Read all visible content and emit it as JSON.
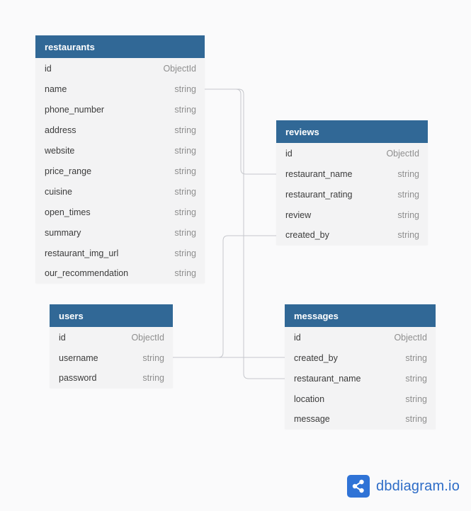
{
  "tables": [
    {
      "id": "restaurants",
      "title": "restaurants",
      "columns": [
        {
          "name": "id",
          "type": "ObjectId"
        },
        {
          "name": "name",
          "type": "string"
        },
        {
          "name": "phone_number",
          "type": "string"
        },
        {
          "name": "address",
          "type": "string"
        },
        {
          "name": "website",
          "type": "string"
        },
        {
          "name": "price_range",
          "type": "string"
        },
        {
          "name": "cuisine",
          "type": "string"
        },
        {
          "name": "open_times",
          "type": "string"
        },
        {
          "name": "summary",
          "type": "string"
        },
        {
          "name": "restaurant_img_url",
          "type": "string"
        },
        {
          "name": "our_recommendation",
          "type": "string"
        }
      ]
    },
    {
      "id": "reviews",
      "title": "reviews",
      "columns": [
        {
          "name": "id",
          "type": "ObjectId"
        },
        {
          "name": "restaurant_name",
          "type": "string"
        },
        {
          "name": "restaurant_rating",
          "type": "string"
        },
        {
          "name": "review",
          "type": "string"
        },
        {
          "name": "created_by",
          "type": "string"
        }
      ]
    },
    {
      "id": "users",
      "title": "users",
      "columns": [
        {
          "name": "id",
          "type": "ObjectId"
        },
        {
          "name": "username",
          "type": "string"
        },
        {
          "name": "password",
          "type": "string"
        }
      ]
    },
    {
      "id": "messages",
      "title": "messages",
      "columns": [
        {
          "name": "id",
          "type": "ObjectId"
        },
        {
          "name": "created_by",
          "type": "string"
        },
        {
          "name": "restaurant_name",
          "type": "string"
        },
        {
          "name": "location",
          "type": "string"
        },
        {
          "name": "message",
          "type": "string"
        }
      ]
    }
  ],
  "relations": [
    {
      "from": "restaurants.name",
      "to": "reviews.restaurant_name"
    },
    {
      "from": "restaurants.name",
      "to": "messages.restaurant_name"
    },
    {
      "from": "users.username",
      "to": "reviews.created_by"
    },
    {
      "from": "users.username",
      "to": "messages.created_by"
    }
  ],
  "branding": {
    "logo_text": "dbdiagram.io",
    "logo_icon": "share-icon",
    "logo_color": "#2f73d6"
  },
  "colors": {
    "header": "#316896",
    "table_body": "#f3f3f4",
    "link": "#c5c7cc"
  }
}
